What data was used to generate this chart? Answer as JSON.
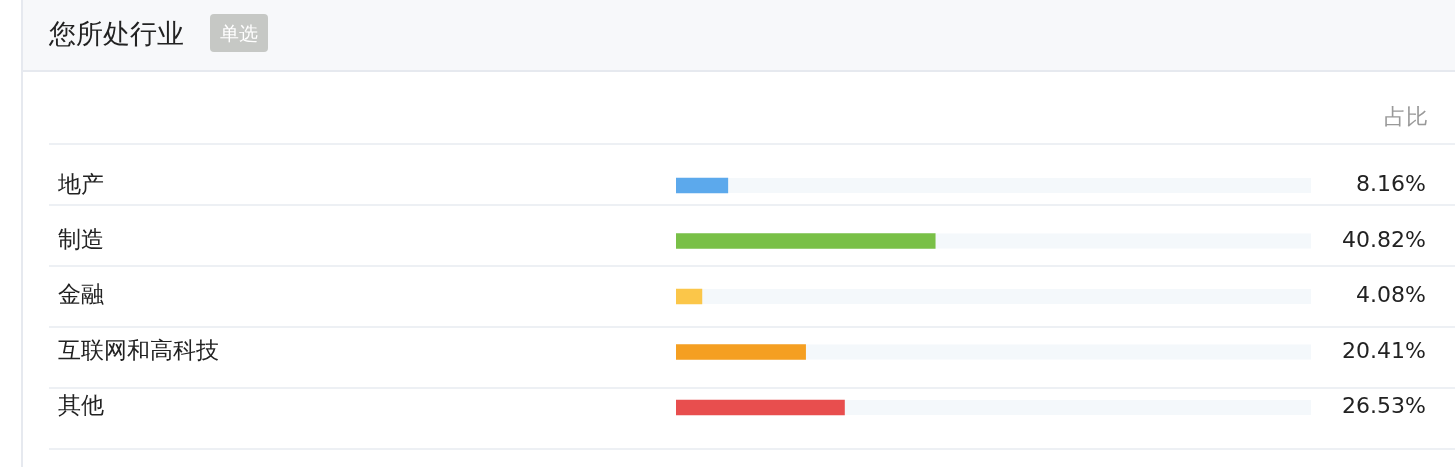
{
  "chart_data": {
    "type": "bar",
    "orientation": "horizontal",
    "title": "您所处行业",
    "subtitle": "单选",
    "xlabel": "占比",
    "categories": [
      "地产",
      "制造",
      "金融",
      "互联网和高科技",
      "其他"
    ],
    "values": [
      8.16,
      40.82,
      4.08,
      20.41,
      26.53
    ],
    "colors": [
      "#5ca9ec",
      "#79c047",
      "#fbc649",
      "#f59f21",
      "#e84e4e"
    ],
    "value_labels": [
      "8.16%",
      "40.82%",
      "4.08%",
      "20.41%",
      "26.53%"
    ],
    "xlim": [
      0,
      100
    ],
    "tick_labels": "y"
  }
}
